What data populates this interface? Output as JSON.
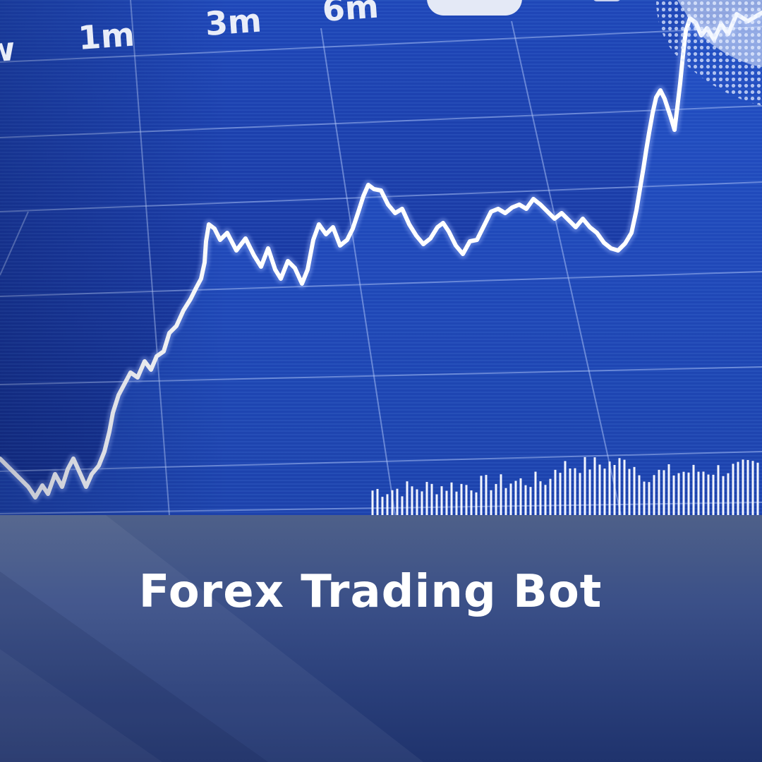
{
  "timeframes": [
    "1m",
    "3m",
    "6m"
  ],
  "colors": {
    "chart_background": "#1b3aa0",
    "price_line": "#ffffff",
    "banner_top": "#4e6089",
    "banner_bottom": "#1f336d",
    "title_text": "#ffffff"
  },
  "banner": {
    "title": "Forex Trading Bot"
  }
}
